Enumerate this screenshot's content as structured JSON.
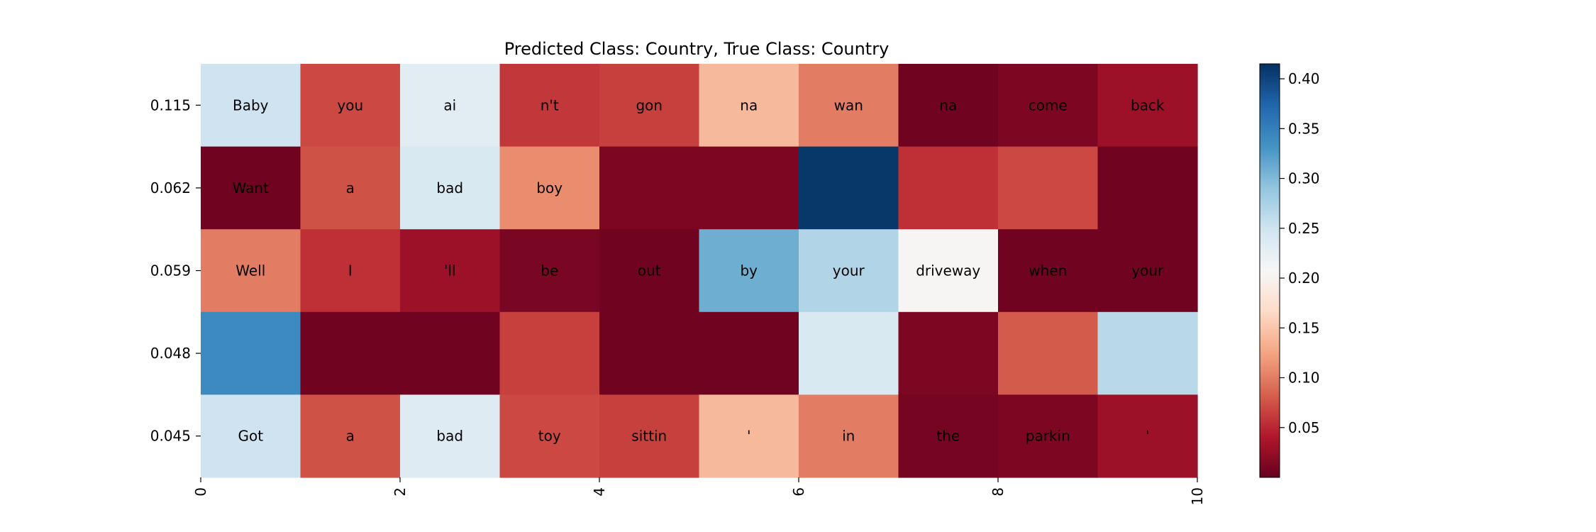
{
  "chart_data": {
    "type": "heatmap",
    "title": "Predicted Class: Country, True Class: Country",
    "row_labels": [
      "0.115",
      "0.062",
      "0.059",
      "0.048",
      "0.045"
    ],
    "x_ticks": [
      "0",
      "2",
      "4",
      "6",
      "8",
      "10"
    ],
    "x_tick_values": [
      0,
      2,
      4,
      6,
      8,
      10
    ],
    "colorscale": "RdBu",
    "color_range": [
      0.0,
      0.415
    ],
    "colorbar_ticks": [
      "0.05",
      "0.10",
      "0.15",
      "0.20",
      "0.25",
      "0.30",
      "0.35",
      "0.40"
    ],
    "colorbar_tick_values": [
      0.05,
      0.1,
      0.15,
      0.2,
      0.25,
      0.3,
      0.35,
      0.4
    ],
    "tokens": [
      [
        "Baby",
        "you",
        "ai",
        "n't",
        "gon",
        "na",
        "wan",
        "na",
        "come",
        "back"
      ],
      [
        "Want",
        "a",
        "bad",
        "boy",
        "",
        "",
        "",
        "",
        "",
        ""
      ],
      [
        "Well",
        "I",
        "'ll",
        "be",
        "out",
        "by",
        "your",
        "driveway",
        "when",
        "your"
      ],
      [
        "",
        "",
        "",
        "",
        "",
        "",
        "",
        "",
        "",
        ""
      ],
      [
        "Got",
        "a",
        "bad",
        "toy",
        "sittin",
        "'",
        "in",
        "the",
        "parkin",
        "'"
      ]
    ],
    "values": [
      [
        0.25,
        0.07,
        0.23,
        0.06,
        0.065,
        0.14,
        0.1,
        0.005,
        0.012,
        0.03
      ],
      [
        0.005,
        0.075,
        0.24,
        0.11,
        0.012,
        0.012,
        0.41,
        0.055,
        0.07,
        0.005
      ],
      [
        0.1,
        0.055,
        0.03,
        0.01,
        0.005,
        0.31,
        0.27,
        0.205,
        0.005,
        0.005
      ],
      [
        0.34,
        0.005,
        0.005,
        0.065,
        0.005,
        0.005,
        0.24,
        0.012,
        0.08,
        0.265
      ],
      [
        0.25,
        0.075,
        0.235,
        0.07,
        0.065,
        0.14,
        0.1,
        0.008,
        0.012,
        0.03
      ]
    ]
  }
}
